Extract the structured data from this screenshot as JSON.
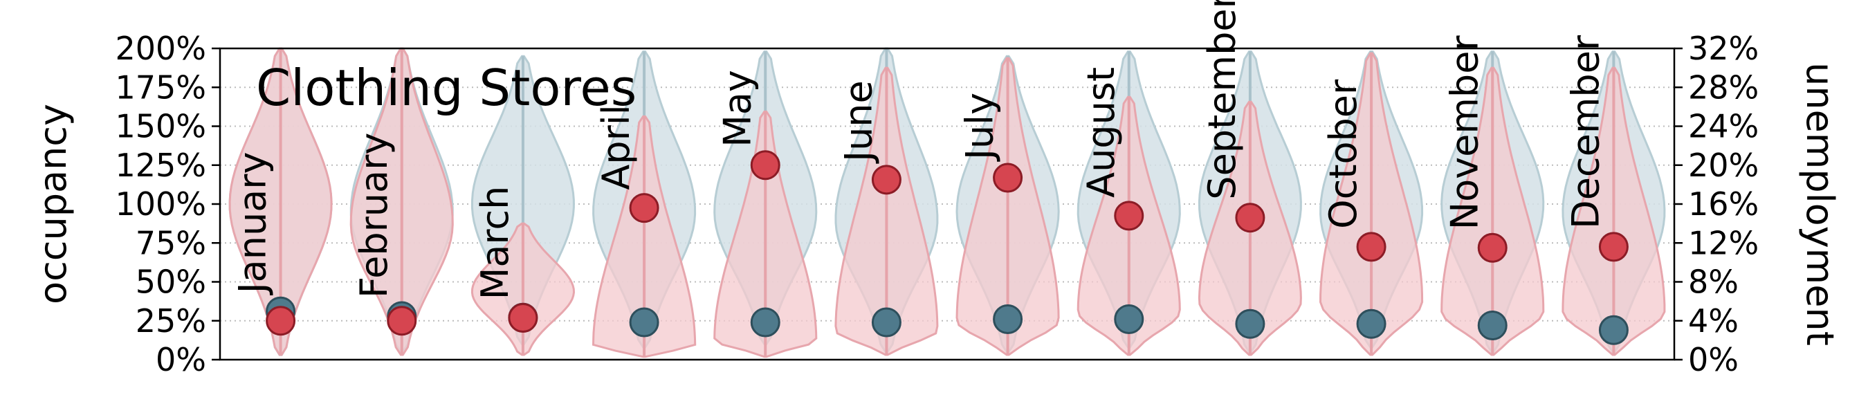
{
  "chart_data": {
    "type": "violin",
    "title": "Clothing Stores",
    "ylabel_left": "occupancy",
    "ylabel_right": "unemployment",
    "ylim_left": [
      0,
      200
    ],
    "ylim_right": [
      0,
      32
    ],
    "yticks_left": [
      "0%",
      "25%",
      "50%",
      "75%",
      "100%",
      "125%",
      "150%",
      "175%",
      "200%"
    ],
    "yticks_right": [
      "0%",
      "4%",
      "8%",
      "12%",
      "16%",
      "20%",
      "24%",
      "28%",
      "32%"
    ],
    "grid": "horizontal dotted",
    "categories": [
      "January",
      "February",
      "March",
      "April",
      "May",
      "June",
      "July",
      "August",
      "September",
      "October",
      "November",
      "December"
    ],
    "occupancy_median_pct": [
      31,
      28,
      27,
      24,
      24,
      24,
      26,
      26,
      23,
      23,
      22,
      19
    ],
    "unemployment_median_pct": [
      4.0,
      4.0,
      4.3,
      15.6,
      20.0,
      18.5,
      18.7,
      14.8,
      14.6,
      11.6,
      11.5,
      11.6
    ],
    "occupancy_distribution": [
      {
        "min": 3,
        "max": 200,
        "mode": 100
      },
      {
        "min": 5,
        "max": 200,
        "mode": 95
      },
      {
        "min": 10,
        "max": 195,
        "mode": 100
      },
      {
        "min": 8,
        "max": 198,
        "mode": 95
      },
      {
        "min": 10,
        "max": 198,
        "mode": 95
      },
      {
        "min": 5,
        "max": 200,
        "mode": 90
      },
      {
        "min": 5,
        "max": 195,
        "mode": 95
      },
      {
        "min": 8,
        "max": 198,
        "mode": 95
      },
      {
        "min": 5,
        "max": 198,
        "mode": 100
      },
      {
        "min": 8,
        "max": 198,
        "mode": 95
      },
      {
        "min": 5,
        "max": 198,
        "mode": 100
      },
      {
        "min": 5,
        "max": 198,
        "mode": 95
      }
    ],
    "unemployment_distribution": [
      {
        "min": 0.5,
        "max": 32,
        "mode": 16
      },
      {
        "min": 0.5,
        "max": 32,
        "mode": 14
      },
      {
        "min": 0.5,
        "max": 14,
        "mode": 7
      },
      {
        "min": 0.3,
        "max": 25,
        "mode": 1.5
      },
      {
        "min": 0.3,
        "max": 25.5,
        "mode": 2
      },
      {
        "min": 0.5,
        "max": 30,
        "mode": 3
      },
      {
        "min": 0.5,
        "max": 31,
        "mode": 4
      },
      {
        "min": 0.5,
        "max": 27,
        "mode": 5
      },
      {
        "min": 0.5,
        "max": 26.5,
        "mode": 6
      },
      {
        "min": 0.5,
        "max": 31.5,
        "mode": 6
      },
      {
        "min": 0.5,
        "max": 30,
        "mode": 5
      },
      {
        "min": 0.5,
        "max": 30,
        "mode": 5
      }
    ],
    "colors": {
      "occupancy": "#4f7a8c",
      "occupancy_fill": "#d3e1e6",
      "unemployment": "#d64550",
      "unemployment_fill": "#f4c9cd",
      "grid": "#bbbbbb"
    }
  }
}
